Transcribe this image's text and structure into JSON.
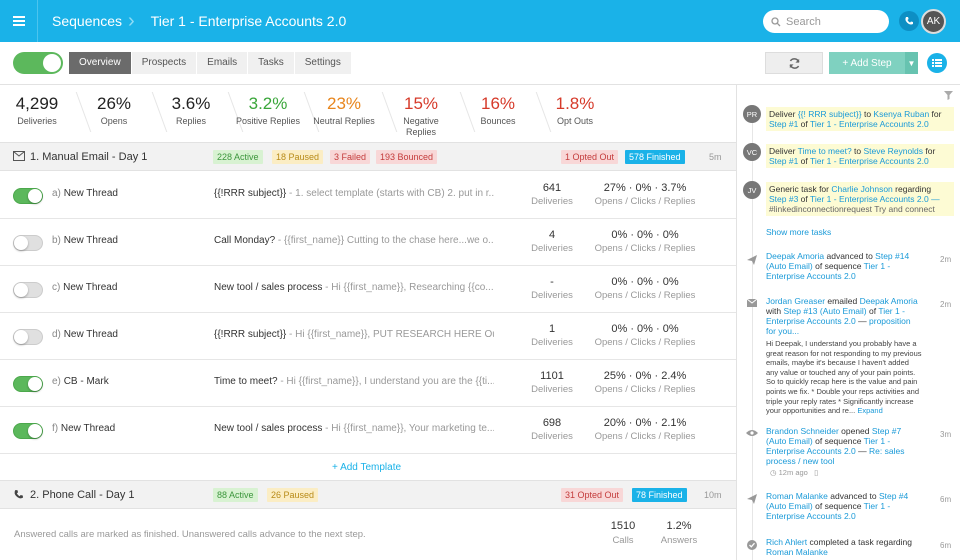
{
  "header": {
    "breadcrumb_root": "Sequences",
    "breadcrumb_current": "Tier 1 - Enterprise Accounts 2.0",
    "search_placeholder": "Search",
    "avatar_initials": "AK"
  },
  "toolbar": {
    "tabs": [
      "Overview",
      "Prospects",
      "Emails",
      "Tasks",
      "Settings"
    ],
    "add_step": "+ Add Step"
  },
  "stats": [
    {
      "value": "4,299",
      "label": "Deliveries",
      "color": "#222"
    },
    {
      "value": "26%",
      "label": "Opens",
      "color": "#222"
    },
    {
      "value": "3.6%",
      "label": "Replies",
      "color": "#222"
    },
    {
      "value": "3.2%",
      "label": "Positive Replies",
      "color": "#3aa63a"
    },
    {
      "value": "23%",
      "label": "Neutral Replies",
      "color": "#e8861e"
    },
    {
      "value": "15%",
      "label": "Negative Replies",
      "color": "#d63a2a"
    },
    {
      "value": "16%",
      "label": "Bounces",
      "color": "#d63a2a"
    },
    {
      "value": "1.8%",
      "label": "Opt Outs",
      "color": "#d63a2a"
    }
  ],
  "step1": {
    "title": "1. Manual Email - Day 1",
    "badges": {
      "active": "228 Active",
      "paused": "18 Paused",
      "failed": "3 Failed",
      "bounced": "193 Bounced",
      "opted_out": "1 Opted Out",
      "finished": "578 Finished"
    },
    "age": "5m",
    "rows": [
      {
        "letter": "a)",
        "name": "New Thread",
        "on": true,
        "subject": "{{!RRR subject}}",
        "preview": " - 1. select template (starts with CB) 2. put in r...",
        "deliveries": "641",
        "opens": "27%",
        "clicks": "0%",
        "replies": "3.7%"
      },
      {
        "letter": "b)",
        "name": "New Thread",
        "on": false,
        "subject": "Call Monday?",
        "preview": " - {{first_name}} Cutting to the chase here...we o...",
        "deliveries": "4",
        "opens": "0%",
        "clicks": "0%",
        "replies": "0%"
      },
      {
        "letter": "c)",
        "name": "New Thread",
        "on": false,
        "subject": "New tool / sales process",
        "preview": " - Hi {{first_name}}, Researching {{co...",
        "deliveries": "-",
        "opens": "0%",
        "clicks": "0%",
        "replies": "0%"
      },
      {
        "letter": "d)",
        "name": "New Thread",
        "on": false,
        "subject": "{{!RRR subject}}",
        "preview": " - Hi {{first_name}}, PUT RESEARCH HERE Ou...",
        "deliveries": "1",
        "opens": "0%",
        "clicks": "0%",
        "replies": "0%"
      },
      {
        "letter": "e)",
        "name": "CB - Mark",
        "on": true,
        "subject": "Time to meet?",
        "preview": " - Hi {{first_name}},  I understand you are the {{ti...",
        "deliveries": "1101",
        "opens": "25%",
        "clicks": "0%",
        "replies": "2.4%"
      },
      {
        "letter": "f)",
        "name": "New Thread",
        "on": true,
        "subject": "New tool / sales process",
        "preview": " - Hi {{first_name}}, Your marketing te...",
        "deliveries": "698",
        "opens": "20%",
        "clicks": "0%",
        "replies": "2.1%"
      }
    ],
    "deliveries_label": "Deliveries",
    "rates_label": "Opens / Clicks / Replies",
    "add_template": "+ Add Template"
  },
  "step2": {
    "title": "2. Phone Call - Day 1",
    "badges": {
      "active": "88 Active",
      "paused": "26 Paused",
      "opted_out": "31 Opted Out",
      "finished": "78 Finished"
    },
    "age": "10m",
    "note": "Answered calls are marked as finished. Unanswered calls advance to the next step.",
    "calls": "1510",
    "calls_label": "Calls",
    "answers": "1.2%",
    "answers_label": "Answers"
  },
  "feed": {
    "tasks": [
      {
        "initials": "PR",
        "pre": "Deliver ",
        "link1": "{{! RRR subject}}",
        "mid": " to ",
        "link2": "Ksenya Ruban",
        "post": " for",
        "line2a": "Step #1",
        "line2b": " of ",
        "line2c": "Tier 1 - Enterprise Accounts 2.0"
      },
      {
        "initials": "VC",
        "pre": "Deliver ",
        "link1": "Time to meet?",
        "mid": " to ",
        "link2": "Steve Reynolds",
        "post": " for",
        "line2a": "Step #1",
        "line2b": " of ",
        "line2c": "Tier 1 - Enterprise Accounts 2.0"
      },
      {
        "initials": "JV",
        "pre": "Generic task for ",
        "link1": "Charlie Johnson",
        "mid": " regarding",
        "link2": "",
        "post": "",
        "line2a": "Step #3",
        "line2b": " of ",
        "line2c": "Tier 1 - Enterprise Accounts 2.0 —",
        "line3": "#linkedinconnectionrequest Try and connect on..."
      }
    ],
    "show_more": "Show more tasks",
    "e1": {
      "who": "Deepak Amoria",
      "text1": " advanced to ",
      "step": "Step #14",
      "step2": "(Auto Email)",
      "text2": " of sequence ",
      "seq": "Tier 1 -",
      "seq2": "Enterprise Accounts 2.0",
      "age": "2m"
    },
    "e2": {
      "who": "Jordan Greaser",
      "text1": " emailed ",
      "who2": "Deepak Amoria",
      "with": "with ",
      "step": "Step #13 (Auto Email)",
      "of": " of ",
      "seq": "Tier 1 -",
      "seq2": "Enterprise Accounts 2.0",
      "dash": " — ",
      "subj": "proposition",
      "subj2": "for you...",
      "age": "2m",
      "body": [
        "Hi Deepak, I understand you probably have a",
        "great reason for not responding to my previous",
        "emails, maybe it's because I haven't added",
        "any value or touched any of your pain points.",
        "So to quickly recap here is the value and pain",
        "points we fix. * Double your reps activities and",
        "triple your reply rates * Significantly increase",
        "your opportunities and re..."
      ],
      "expand": "Expand"
    },
    "e3": {
      "who": "Brandon Schneider",
      "text1": " opened ",
      "step": "Step #7",
      "step2": "(Auto Email)",
      "text2": " of sequence ",
      "seq": "Tier 1 -",
      "seq2": "Enterprise Accounts 2.0",
      "dash": " — ",
      "subj": "Re: sales",
      "subj2": "process / new tool",
      "ago": "12m ago",
      "age": "3m"
    },
    "e4": {
      "who": "Roman Malanke",
      "text1": " advanced to ",
      "step": "Step #4",
      "step2": "(Auto Email)",
      "text2": " of sequence ",
      "seq": "Tier 1 -",
      "seq2": "Enterprise Accounts 2.0",
      "age": "6m"
    },
    "e5": {
      "who": "Rich Ahlert",
      "text1": " completed a task regarding",
      "who2": "Roman Malanke",
      "age": "6m"
    }
  }
}
